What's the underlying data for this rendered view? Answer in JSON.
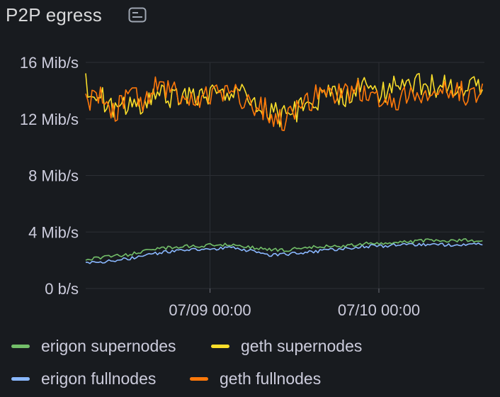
{
  "panel": {
    "title": "P2P egress",
    "description_icon": "description-icon"
  },
  "colors": {
    "background": "#181b1f",
    "grid": "#2c2f35",
    "text": "#ccccdc"
  },
  "legend": [
    {
      "label": "erigon supernodes",
      "color": "#73bf69"
    },
    {
      "label": "geth supernodes",
      "color": "#fade2a"
    },
    {
      "label": "erigon fullnodes",
      "color": "#8ab8ff"
    },
    {
      "label": "geth fullnodes",
      "color": "#ff780a"
    }
  ],
  "chart_data": {
    "type": "line",
    "title": "P2P egress",
    "xlabel": "",
    "ylabel": "",
    "y_unit": "Mib/s",
    "ylim": [
      0,
      16
    ],
    "xlim": [
      "07/08 06:20",
      "07/10 15:00"
    ],
    "yticks": [
      {
        "value": 0,
        "label": "0 b/s"
      },
      {
        "value": 4,
        "label": "4 Mib/s"
      },
      {
        "value": 8,
        "label": "8 Mib/s"
      },
      {
        "value": 12,
        "label": "12 Mib/s"
      },
      {
        "value": 16,
        "label": "16 Mib/s"
      }
    ],
    "xticks": [
      {
        "hours": 17.67,
        "label": "07/09 00:00"
      },
      {
        "hours": 41.67,
        "label": "07/10 00:00"
      }
    ],
    "grid": true,
    "legend_position": "bottom",
    "series": [
      {
        "name": "erigon supernodes",
        "color": "#73bf69",
        "x_hours": [
          0,
          2,
          4,
          6,
          8,
          10,
          12,
          14,
          16,
          18,
          20,
          22,
          24,
          26,
          28,
          30,
          32,
          34,
          36,
          38,
          40,
          42,
          44,
          46,
          48,
          50
        ],
        "values": [
          2.0,
          2.2,
          2.3,
          2.4,
          2.6,
          2.8,
          2.9,
          3.0,
          3.0,
          3.1,
          3.1,
          3.0,
          2.9,
          2.8,
          2.7,
          2.8,
          2.9,
          3.0,
          3.0,
          3.1,
          3.2,
          3.2,
          3.3,
          3.3,
          3.4,
          3.4
        ]
      },
      {
        "name": "erigon fullnodes",
        "color": "#8ab8ff",
        "x_hours": [
          0,
          2,
          4,
          6,
          8,
          10,
          12,
          14,
          16,
          18,
          20,
          22,
          24,
          26,
          28,
          30,
          32,
          34,
          36,
          38,
          40,
          42,
          44,
          46,
          48,
          50
        ],
        "values": [
          1.8,
          1.9,
          2.0,
          2.1,
          2.3,
          2.5,
          2.6,
          2.7,
          2.8,
          2.8,
          2.9,
          2.8,
          2.6,
          2.4,
          2.4,
          2.5,
          2.6,
          2.7,
          2.8,
          2.9,
          3.0,
          3.0,
          3.1,
          3.1,
          3.1,
          3.1
        ]
      },
      {
        "name": "geth supernodes",
        "color": "#fade2a",
        "x_hours": [
          0,
          2,
          4,
          6,
          8,
          10,
          12,
          14,
          16,
          18,
          20,
          22,
          24,
          26,
          28,
          30,
          32,
          34,
          36,
          38,
          40,
          42,
          44,
          46,
          48,
          50
        ],
        "values": [
          14.5,
          13.8,
          12.5,
          13.2,
          13.0,
          14.0,
          13.5,
          13.8,
          13.5,
          13.6,
          13.9,
          13.8,
          13.2,
          12.8,
          12.2,
          12.4,
          13.2,
          13.8,
          13.5,
          14.0,
          14.2,
          13.8,
          14.4,
          14.6,
          14.5,
          14.3
        ]
      },
      {
        "name": "geth fullnodes",
        "color": "#ff780a",
        "x_hours": [
          0,
          2,
          4,
          6,
          8,
          10,
          12,
          14,
          16,
          18,
          20,
          22,
          24,
          26,
          28,
          30,
          32,
          34,
          36,
          38,
          40,
          42,
          44,
          46,
          48,
          50
        ],
        "values": [
          13.0,
          13.5,
          12.3,
          13.6,
          13.2,
          14.2,
          13.8,
          13.6,
          13.4,
          13.8,
          14.0,
          13.6,
          13.0,
          12.5,
          12.0,
          12.6,
          13.4,
          13.8,
          13.6,
          13.9,
          14.1,
          13.7,
          13.5,
          13.6,
          13.7,
          13.8
        ]
      }
    ]
  }
}
